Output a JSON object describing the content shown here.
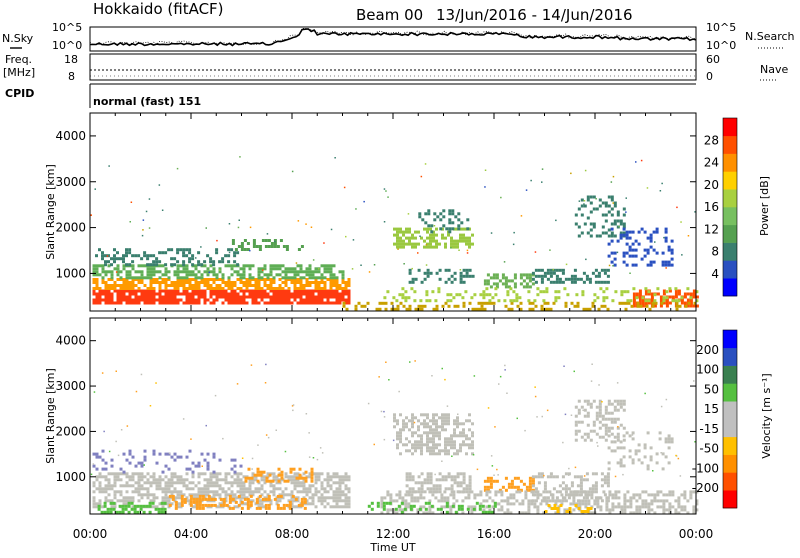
{
  "header": {
    "station": "Hokkaido (fitACF)",
    "beam": "Beam 00",
    "dates": "13/Jun/2016 - 14/Jun/2016"
  },
  "summary_panels": {
    "nsky_label": "N.Sky",
    "nsky_ticks": [
      "10^5",
      "10^0"
    ],
    "nsearch_label": "N.Search",
    "nsearch_ticks": [
      "10^5",
      "10^0"
    ],
    "freq_label_1": "Freq.",
    "freq_label_2": "[MHz]",
    "freq_ticks": [
      "18",
      "8"
    ],
    "nave_label": "Nave",
    "nave_ticks": [
      "60",
      "0"
    ],
    "cpid_label": "CPID",
    "cpid_text": "normal (fast) 151"
  },
  "chart_data": [
    {
      "type": "heatmap",
      "name": "power",
      "ylabel": "Slant Range [km]",
      "xlabel": "",
      "ylim": [
        180,
        4500
      ],
      "xlim_hours": [
        0,
        24
      ],
      "y_ticks": [
        "4000",
        "3000",
        "2000",
        "1000"
      ],
      "y_tick_values": [
        4000,
        3000,
        2000,
        1000
      ],
      "colorbar_label": "Power [dB]",
      "colorbar_ticks": [
        "28",
        "24",
        "20",
        "16",
        "12",
        "8",
        "4"
      ],
      "colorbar_colors": [
        "#0000ff",
        "#2a50c0",
        "#3a7f6e",
        "#55a050",
        "#77c060",
        "#a8d040",
        "#ffd000",
        "#ff9000",
        "#ff5000",
        "#ff0000"
      ],
      "bands": [
        {
          "t0": 0.1,
          "t1": 10.2,
          "y0": 350,
          "y1": 650,
          "color": "#ff3a10",
          "density": 0.85
        },
        {
          "t0": 0.1,
          "t1": 10.2,
          "y0": 650,
          "y1": 900,
          "color": "#ff9a00",
          "density": 0.7
        },
        {
          "t0": 0.1,
          "t1": 10.0,
          "y0": 900,
          "y1": 1200,
          "color": "#5fae55",
          "density": 0.6
        },
        {
          "t0": 0.2,
          "t1": 5.8,
          "y0": 1200,
          "y1": 1550,
          "color": "#3a7f6e",
          "density": 0.35
        },
        {
          "t0": 5.5,
          "t1": 8.5,
          "y0": 1500,
          "y1": 1750,
          "color": "#55a050",
          "density": 0.35
        },
        {
          "t0": 12.0,
          "t1": 15.2,
          "y0": 1550,
          "y1": 2000,
          "color": "#9ac840",
          "density": 0.55
        },
        {
          "t0": 13.0,
          "t1": 15.0,
          "y0": 1900,
          "y1": 2400,
          "color": "#3a7f6e",
          "density": 0.3
        },
        {
          "t0": 15.6,
          "t1": 17.6,
          "y0": 700,
          "y1": 1000,
          "color": "#6cb055",
          "density": 0.55
        },
        {
          "t0": 12.5,
          "t1": 15.2,
          "y0": 800,
          "y1": 1100,
          "color": "#3a7f6e",
          "density": 0.35
        },
        {
          "t0": 19.2,
          "t1": 21.2,
          "y0": 1800,
          "y1": 2700,
          "color": "#3a7f6e",
          "density": 0.35
        },
        {
          "t0": 20.5,
          "t1": 23.0,
          "y0": 1200,
          "y1": 2000,
          "color": "#2a50c0",
          "density": 0.3
        },
        {
          "t0": 17.5,
          "t1": 20.5,
          "y0": 800,
          "y1": 1100,
          "color": "#3a7f6e",
          "density": 0.45
        },
        {
          "t0": 21.5,
          "t1": 24.0,
          "y0": 300,
          "y1": 650,
          "color": "#ff5000",
          "density": 0.6
        },
        {
          "t0": 10.0,
          "t1": 24.0,
          "y0": 200,
          "y1": 380,
          "color": "#c8a000",
          "density": 0.3
        },
        {
          "t0": 11.5,
          "t1": 24.0,
          "y0": 400,
          "y1": 700,
          "color": "#a8d040",
          "density": 0.2
        }
      ]
    },
    {
      "type": "heatmap",
      "name": "velocity",
      "ylabel": "Slant Range [km]",
      "xlabel": "Time UT",
      "ylim": [
        180,
        4500
      ],
      "xlim_hours": [
        0,
        24
      ],
      "y_ticks": [
        "4000",
        "3000",
        "2000",
        "1000"
      ],
      "y_tick_values": [
        4000,
        3000,
        2000,
        1000
      ],
      "x_ticks": [
        "00:00",
        "04:00",
        "08:00",
        "12:00",
        "16:00",
        "20:00",
        "00:00"
      ],
      "x_tick_hours": [
        0,
        4,
        8,
        12,
        16,
        20,
        24
      ],
      "colorbar_label": "Velocity [m s⁻¹]",
      "colorbar_ticks": [
        "200",
        "100",
        "50",
        "15",
        "-15",
        "-50",
        "-100",
        "-200"
      ],
      "colorbar_colors": [
        "#ff0000",
        "#ff5000",
        "#ff9000",
        "#ffc000",
        "#c0c0c0",
        "#c0c0c0",
        "#55c040",
        "#3a8050",
        "#2a50c0",
        "#0000ff"
      ],
      "bands": [
        {
          "t0": 0.1,
          "t1": 10.2,
          "y0": 350,
          "y1": 1100,
          "color": "#c0c0b8",
          "density": 0.6
        },
        {
          "t0": 0.3,
          "t1": 3.0,
          "y0": 250,
          "y1": 450,
          "color": "#55c040",
          "density": 0.5
        },
        {
          "t0": 3.0,
          "t1": 8.5,
          "y0": 280,
          "y1": 600,
          "color": "#ffa020",
          "density": 0.45
        },
        {
          "t0": 6.0,
          "t1": 8.8,
          "y0": 900,
          "y1": 1200,
          "color": "#ffa020",
          "density": 0.3
        },
        {
          "t0": 0.1,
          "t1": 6.0,
          "y0": 1100,
          "y1": 1600,
          "color": "#8080c0",
          "density": 0.15
        },
        {
          "t0": 12.0,
          "t1": 15.2,
          "y0": 1500,
          "y1": 2400,
          "color": "#c0c0b8",
          "density": 0.5
        },
        {
          "t0": 12.5,
          "t1": 15.0,
          "y0": 700,
          "y1": 1100,
          "color": "#c0c0b8",
          "density": 0.45
        },
        {
          "t0": 15.6,
          "t1": 17.6,
          "y0": 700,
          "y1": 1000,
          "color": "#ffa020",
          "density": 0.5
        },
        {
          "t0": 19.2,
          "t1": 21.2,
          "y0": 1800,
          "y1": 2700,
          "color": "#c0c0b8",
          "density": 0.4
        },
        {
          "t0": 20.5,
          "t1": 23.0,
          "y0": 1200,
          "y1": 2000,
          "color": "#c0c0b8",
          "density": 0.25
        },
        {
          "t0": 17.5,
          "t1": 20.5,
          "y0": 500,
          "y1": 1100,
          "color": "#c0c0b8",
          "density": 0.4
        },
        {
          "t0": 11.5,
          "t1": 24.0,
          "y0": 200,
          "y1": 700,
          "color": "#c0c0b8",
          "density": 0.45
        },
        {
          "t0": 11.0,
          "t1": 16.0,
          "y0": 250,
          "y1": 450,
          "color": "#55c040",
          "density": 0.25
        },
        {
          "t0": 18.0,
          "t1": 20.0,
          "y0": 250,
          "y1": 400,
          "color": "#ffc000",
          "density": 0.3
        }
      ]
    }
  ]
}
